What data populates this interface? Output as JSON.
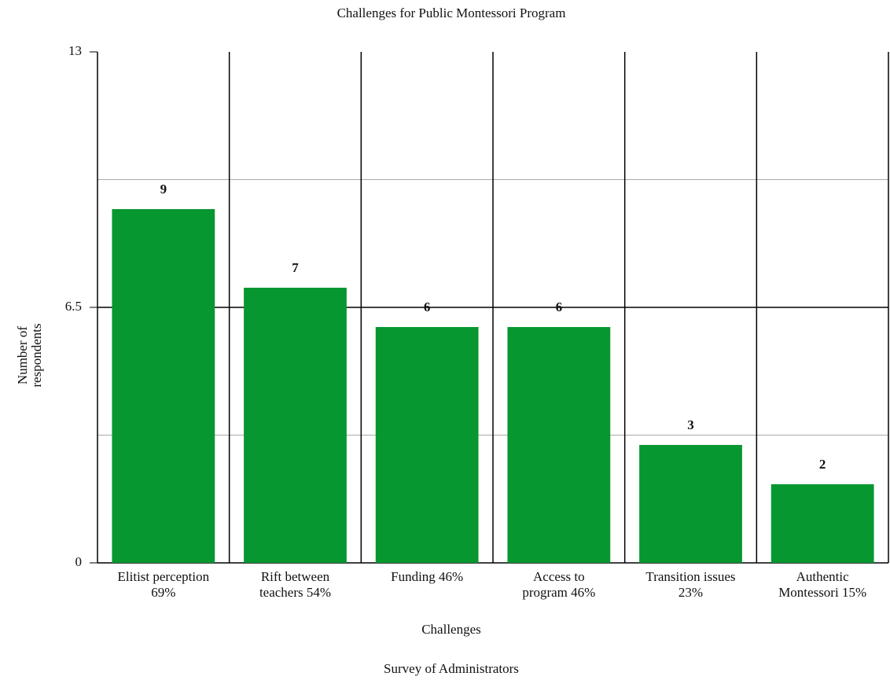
{
  "chart_data": {
    "type": "bar",
    "title": "Challenges for Public Montessori Program",
    "x_label": "Challenges",
    "y_label": "Number of respondents",
    "caption": "Survey of Administrators",
    "categories": [
      "Elitist perception\n69%",
      "Rift between\nteachers 54%",
      "Funding 46%",
      "Access to\nprogram 46%",
      "Transition issues\n23%",
      "Authentic\nMontessori 15%"
    ],
    "values": [
      9,
      7,
      6,
      6,
      3,
      2
    ],
    "color": "#079730",
    "ylim": [
      0,
      13
    ],
    "yticks": [
      0,
      6.5,
      13
    ],
    "minor_gridlines": [
      3.25,
      9.75
    ],
    "grid": true
  }
}
